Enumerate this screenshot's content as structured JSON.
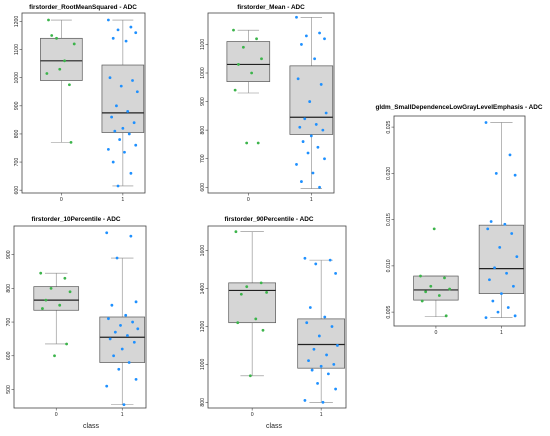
{
  "chart_data": [
    {
      "type": "box",
      "title": "firstorder_RootMeanSquared - ADC",
      "xlabel": "",
      "categories": [
        "0",
        "1"
      ],
      "ylim": [
        590,
        1230
      ],
      "yticks": [
        600,
        700,
        800,
        900,
        1000,
        1100,
        1200
      ],
      "colors": [
        "#3cb44b",
        "#1e90ff"
      ],
      "boxes": [
        {
          "category": "0",
          "min": 770,
          "q1": 990,
          "median": 1060,
          "q3": 1140,
          "max": 1205
        },
        {
          "category": "1",
          "min": 615,
          "q1": 805,
          "median": 875,
          "q3": 1045,
          "max": 1205
        }
      ],
      "points": [
        [
          1015,
          975,
          1140,
          1120,
          1150,
          1060,
          1205,
          770,
          1030
        ],
        [
          1205,
          1180,
          1170,
          1160,
          1140,
          1130,
          1000,
          990,
          970,
          950,
          900,
          880,
          860,
          840,
          820,
          810,
          800,
          780,
          760,
          745,
          735,
          700,
          660,
          615
        ]
      ]
    },
    {
      "type": "box",
      "title": "firstorder_Mean - ADC",
      "xlabel": "",
      "categories": [
        "0",
        "1"
      ],
      "ylim": [
        580,
        1210
      ],
      "yticks": [
        600,
        700,
        800,
        900,
        1000,
        1100
      ],
      "colors": [
        "#3cb44b",
        "#1e90ff"
      ],
      "boxes": [
        {
          "category": "0",
          "min": 930,
          "q1": 970,
          "median": 1030,
          "q3": 1110,
          "max": 1150
        },
        {
          "category": "1",
          "min": 595,
          "q1": 785,
          "median": 845,
          "q3": 1025,
          "max": 1195
        }
      ],
      "points": [
        [
          1150,
          1120,
          1090,
          1050,
          1030,
          1000,
          940,
          755,
          755
        ],
        [
          1195,
          1140,
          1130,
          1120,
          1100,
          1050,
          980,
          960,
          900,
          860,
          840,
          820,
          810,
          800,
          780,
          760,
          740,
          720,
          700,
          680,
          650,
          620,
          600
        ]
      ]
    },
    {
      "type": "box",
      "title": "gldm_SmallDependenceLowGrayLevelEmphasis - ADC",
      "xlabel": "",
      "categories": [
        "0",
        "1"
      ],
      "ylim": [
        0.0035,
        0.0262
      ],
      "yticks": [
        0.005,
        0.01,
        0.015,
        0.02,
        0.025
      ],
      "colors": [
        "#3cb44b",
        "#1e90ff"
      ],
      "boxes": [
        {
          "category": "0",
          "min": 0.0045,
          "q1": 0.0063,
          "median": 0.0074,
          "q3": 0.0089,
          "max": 0.0089
        },
        {
          "category": "1",
          "min": 0.0044,
          "q1": 0.007,
          "median": 0.0097,
          "q3": 0.0144,
          "max": 0.0255
        }
      ],
      "points": [
        [
          0.0089,
          0.0087,
          0.0078,
          0.0075,
          0.0072,
          0.0068,
          0.0062,
          0.0046,
          0.014
        ],
        [
          0.0255,
          0.022,
          0.02,
          0.0198,
          0.0148,
          0.0145,
          0.014,
          0.0135,
          0.012,
          0.011,
          0.0098,
          0.0092,
          0.0085,
          0.0078,
          0.007,
          0.0062,
          0.0055,
          0.005,
          0.0046,
          0.0044
        ]
      ]
    },
    {
      "type": "box",
      "title": "firstorder_10Percentile - ADC",
      "xlabel": "class",
      "categories": [
        "0",
        "1"
      ],
      "ylim": [
        445,
        985
      ],
      "yticks": [
        500,
        600,
        700,
        800,
        900
      ],
      "colors": [
        "#3cb44b",
        "#1e90ff"
      ],
      "boxes": [
        {
          "category": "0",
          "min": 635,
          "q1": 735,
          "median": 765,
          "q3": 805,
          "max": 845
        },
        {
          "category": "1",
          "min": 455,
          "q1": 580,
          "median": 655,
          "q3": 715,
          "max": 890
        }
      ],
      "points": [
        [
          845,
          830,
          800,
          790,
          765,
          750,
          740,
          635,
          600
        ],
        [
          965,
          955,
          890,
          760,
          750,
          720,
          710,
          700,
          690,
          680,
          670,
          660,
          650,
          640,
          620,
          600,
          580,
          560,
          530,
          510,
          455
        ]
      ]
    },
    {
      "type": "box",
      "title": "firstorder_90Percentile - ADC",
      "xlabel": "class",
      "categories": [
        "0",
        "1"
      ],
      "ylim": [
        770,
        1730
      ],
      "yticks": [
        800,
        1000,
        1200,
        1400,
        1600
      ],
      "colors": [
        "#3cb44b",
        "#1e90ff"
      ],
      "boxes": [
        {
          "category": "0",
          "min": 940,
          "q1": 1220,
          "median": 1390,
          "q3": 1430,
          "max": 1700
        },
        {
          "category": "1",
          "min": 800,
          "q1": 980,
          "median": 1105,
          "q3": 1240,
          "max": 1550
        }
      ],
      "points": [
        [
          1700,
          1430,
          1410,
          1380,
          1370,
          1240,
          1220,
          1180,
          940
        ],
        [
          1560,
          1550,
          1530,
          1480,
          1300,
          1250,
          1220,
          1200,
          1150,
          1100,
          1080,
          1050,
          1020,
          1000,
          990,
          970,
          950,
          900,
          870,
          810,
          800
        ]
      ]
    }
  ]
}
